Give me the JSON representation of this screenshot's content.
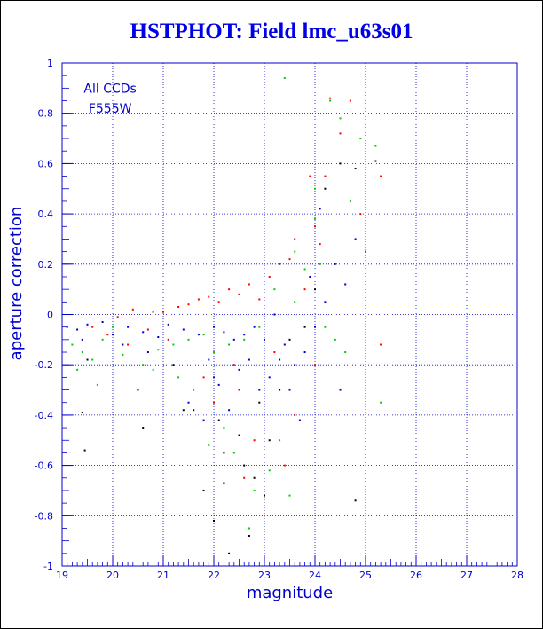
{
  "title": "HSTPHOT: Field lmc_u63s01",
  "annotation": [
    "All CCDs",
    "F555W"
  ],
  "chart_data": {
    "type": "scatter",
    "title": "HSTPHOT: Field lmc_u63s01",
    "xlabel": "magnitude",
    "ylabel": "aperture correction",
    "xlim": [
      19,
      28
    ],
    "ylim": [
      -1,
      1
    ],
    "xticks": [
      19,
      20,
      21,
      22,
      23,
      24,
      25,
      26,
      27,
      28
    ],
    "yticks": [
      -1,
      -0.8,
      -0.6,
      -0.4,
      -0.2,
      0,
      0.2,
      0.4,
      0.6,
      0.8,
      1
    ],
    "grid": true,
    "colors": {
      "axis": "#0000cc",
      "grid": "#0000cc",
      "title": "#0000e6"
    },
    "series": [
      {
        "color": "#000000",
        "points": [
          [
            19.4,
            -0.39
          ],
          [
            19.45,
            -0.54
          ],
          [
            19.5,
            -0.18
          ],
          [
            20.5,
            -0.3
          ],
          [
            20.6,
            -0.45
          ],
          [
            21.2,
            -0.2
          ],
          [
            21.4,
            -0.38
          ],
          [
            21.6,
            -0.38
          ],
          [
            21.8,
            -0.7
          ],
          [
            22.0,
            -0.82
          ],
          [
            22.1,
            -0.42
          ],
          [
            22.2,
            -0.55
          ],
          [
            22.3,
            -0.95
          ],
          [
            22.5,
            -0.48
          ],
          [
            22.6,
            -0.6
          ],
          [
            22.7,
            -0.88
          ],
          [
            22.8,
            -0.65
          ],
          [
            22.9,
            -0.35
          ],
          [
            23.0,
            -0.72
          ],
          [
            23.1,
            -0.5
          ],
          [
            23.3,
            -0.3
          ],
          [
            23.5,
            -0.1
          ],
          [
            23.8,
            -0.05
          ],
          [
            24.0,
            0.1
          ],
          [
            24.2,
            0.5
          ],
          [
            24.5,
            0.6
          ],
          [
            24.8,
            0.58
          ],
          [
            24.8,
            -0.74
          ],
          [
            25.2,
            0.61
          ],
          [
            22.2,
            -0.67
          ]
        ]
      },
      {
        "color": "#ff0000",
        "points": [
          [
            20.1,
            -0.01
          ],
          [
            20.4,
            0.02
          ],
          [
            20.8,
            0.01
          ],
          [
            21.0,
            0.01
          ],
          [
            21.3,
            0.03
          ],
          [
            21.5,
            0.04
          ],
          [
            21.7,
            0.06
          ],
          [
            21.9,
            0.07
          ],
          [
            22.1,
            0.05
          ],
          [
            22.3,
            0.1
          ],
          [
            22.5,
            0.08
          ],
          [
            22.7,
            0.12
          ],
          [
            22.9,
            0.06
          ],
          [
            23.1,
            0.15
          ],
          [
            23.3,
            0.2
          ],
          [
            23.5,
            0.22
          ],
          [
            23.6,
            0.3
          ],
          [
            23.8,
            0.1
          ],
          [
            24.0,
            0.35
          ],
          [
            24.2,
            0.55
          ],
          [
            24.3,
            0.86
          ],
          [
            24.5,
            0.72
          ],
          [
            24.7,
            0.85
          ],
          [
            25.0,
            0.25
          ],
          [
            25.3,
            0.55
          ],
          [
            22.5,
            -0.3
          ],
          [
            22.8,
            -0.5
          ],
          [
            23.0,
            -0.8
          ],
          [
            23.4,
            -0.6
          ],
          [
            23.6,
            -0.4
          ],
          [
            22.0,
            -0.35
          ],
          [
            21.8,
            -0.25
          ],
          [
            22.4,
            -0.2
          ],
          [
            23.2,
            -0.15
          ],
          [
            24.0,
            -0.2
          ],
          [
            19.6,
            -0.05
          ],
          [
            19.9,
            -0.08
          ],
          [
            20.3,
            -0.12
          ],
          [
            20.7,
            -0.06
          ],
          [
            21.1,
            -0.1
          ],
          [
            23.9,
            0.55
          ],
          [
            24.1,
            0.28
          ],
          [
            24.9,
            0.4
          ],
          [
            25.3,
            -0.12
          ],
          [
            22.6,
            -0.65
          ]
        ]
      },
      {
        "color": "#00cc00",
        "points": [
          [
            19.2,
            -0.12
          ],
          [
            19.4,
            -0.15
          ],
          [
            19.6,
            -0.18
          ],
          [
            19.8,
            -0.1
          ],
          [
            20.2,
            -0.16
          ],
          [
            20.6,
            -0.2
          ],
          [
            20.9,
            -0.14
          ],
          [
            21.2,
            -0.12
          ],
          [
            21.5,
            -0.1
          ],
          [
            21.8,
            -0.08
          ],
          [
            22.0,
            -0.15
          ],
          [
            22.3,
            -0.12
          ],
          [
            22.6,
            -0.1
          ],
          [
            22.9,
            -0.05
          ],
          [
            23.2,
            0.1
          ],
          [
            23.4,
            0.94
          ],
          [
            23.6,
            0.25
          ],
          [
            23.8,
            0.18
          ],
          [
            24.0,
            0.5
          ],
          [
            24.1,
            0.2
          ],
          [
            24.3,
            0.85
          ],
          [
            24.5,
            0.78
          ],
          [
            24.7,
            0.45
          ],
          [
            24.9,
            0.7
          ],
          [
            25.2,
            0.67
          ],
          [
            25.3,
            -0.35
          ],
          [
            24.6,
            -0.15
          ],
          [
            24.2,
            -0.05
          ],
          [
            23.3,
            -0.5
          ],
          [
            23.1,
            -0.62
          ],
          [
            22.8,
            -0.7
          ],
          [
            22.4,
            -0.55
          ],
          [
            22.2,
            -0.45
          ],
          [
            21.9,
            -0.52
          ],
          [
            21.6,
            -0.3
          ],
          [
            21.3,
            -0.25
          ],
          [
            20.8,
            -0.22
          ],
          [
            20.0,
            -0.05
          ],
          [
            19.3,
            -0.22
          ],
          [
            19.7,
            -0.28
          ],
          [
            23.6,
            0.05
          ],
          [
            24.4,
            -0.1
          ],
          [
            22.7,
            -0.85
          ],
          [
            23.5,
            -0.72
          ],
          [
            24.0,
            0.38
          ]
        ]
      },
      {
        "color": "#0000cc",
        "points": [
          [
            19.1,
            -0.05
          ],
          [
            19.3,
            -0.06
          ],
          [
            19.5,
            -0.04
          ],
          [
            19.8,
            -0.03
          ],
          [
            20.0,
            -0.08
          ],
          [
            20.3,
            -0.05
          ],
          [
            20.6,
            -0.07
          ],
          [
            20.9,
            -0.09
          ],
          [
            21.1,
            -0.04
          ],
          [
            21.4,
            -0.06
          ],
          [
            21.7,
            -0.08
          ],
          [
            22.0,
            -0.05
          ],
          [
            22.2,
            -0.07
          ],
          [
            22.4,
            -0.1
          ],
          [
            22.6,
            -0.08
          ],
          [
            22.8,
            -0.05
          ],
          [
            23.0,
            -0.1
          ],
          [
            23.2,
            0.0
          ],
          [
            23.4,
            -0.12
          ],
          [
            23.6,
            -0.2
          ],
          [
            23.8,
            -0.15
          ],
          [
            24.0,
            -0.05
          ],
          [
            24.2,
            0.05
          ],
          [
            24.4,
            0.2
          ],
          [
            24.6,
            0.12
          ],
          [
            21.5,
            -0.35
          ],
          [
            21.8,
            -0.42
          ],
          [
            22.1,
            -0.28
          ],
          [
            22.3,
            -0.38
          ],
          [
            22.5,
            -0.22
          ],
          [
            22.9,
            -0.3
          ],
          [
            23.1,
            -0.25
          ],
          [
            23.3,
            -0.18
          ],
          [
            23.5,
            -0.3
          ],
          [
            23.7,
            -0.42
          ],
          [
            20.7,
            -0.15
          ],
          [
            20.2,
            -0.12
          ],
          [
            19.4,
            -0.1
          ],
          [
            24.8,
            0.3
          ],
          [
            24.1,
            0.42
          ],
          [
            22.7,
            -0.18
          ],
          [
            21.9,
            -0.18
          ],
          [
            23.9,
            0.15
          ],
          [
            24.5,
            -0.3
          ],
          [
            22.0,
            -0.25
          ]
        ]
      }
    ]
  }
}
